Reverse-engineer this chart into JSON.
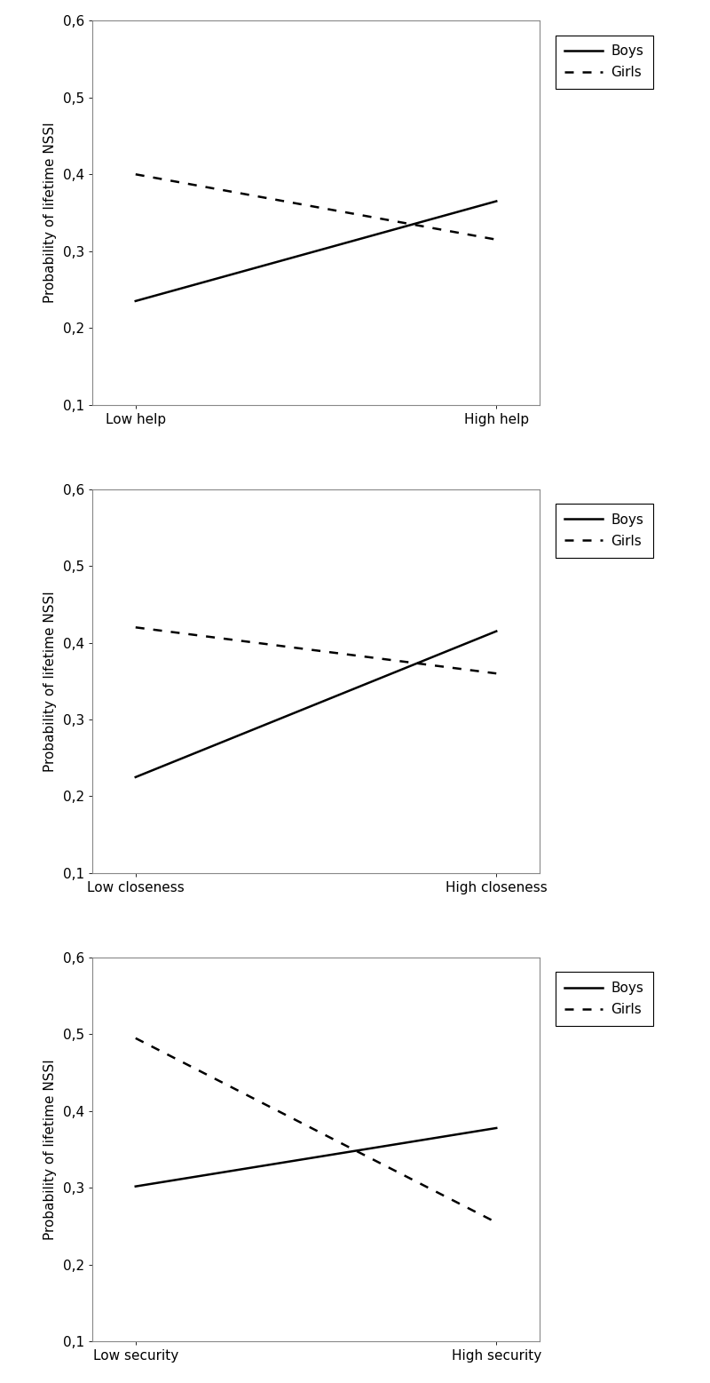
{
  "charts": [
    {
      "boys": [
        0.235,
        0.365
      ],
      "girls": [
        0.4,
        0.315
      ],
      "xlabel_left": "Low help",
      "xlabel_right": "High help"
    },
    {
      "boys": [
        0.225,
        0.415
      ],
      "girls": [
        0.42,
        0.36
      ],
      "xlabel_left": "Low closeness",
      "xlabel_right": "High closeness"
    },
    {
      "boys": [
        0.302,
        0.378
      ],
      "girls": [
        0.495,
        0.255
      ],
      "xlabel_left": "Low security",
      "xlabel_right": "High security"
    }
  ],
  "ylabel": "Probability of lifetime NSSI",
  "ylim": [
    0.1,
    0.6
  ],
  "yticks": [
    0.1,
    0.2,
    0.3,
    0.4,
    0.5,
    0.6
  ],
  "ytick_labels": [
    "0,1",
    "0,2",
    "0,3",
    "0,4",
    "0,5",
    "0,6"
  ],
  "legend_boys": "Boys",
  "legend_girls": "Girls",
  "line_color_boys": "#000000",
  "line_color_girls": "#000000",
  "line_style_boys": "-",
  "line_width": 1.8,
  "girls_dash_pattern": [
    4,
    4
  ],
  "background_color": "#ffffff",
  "spine_color": "#888888",
  "font_size_tick": 11,
  "font_size_label": 11,
  "font_size_legend": 11
}
